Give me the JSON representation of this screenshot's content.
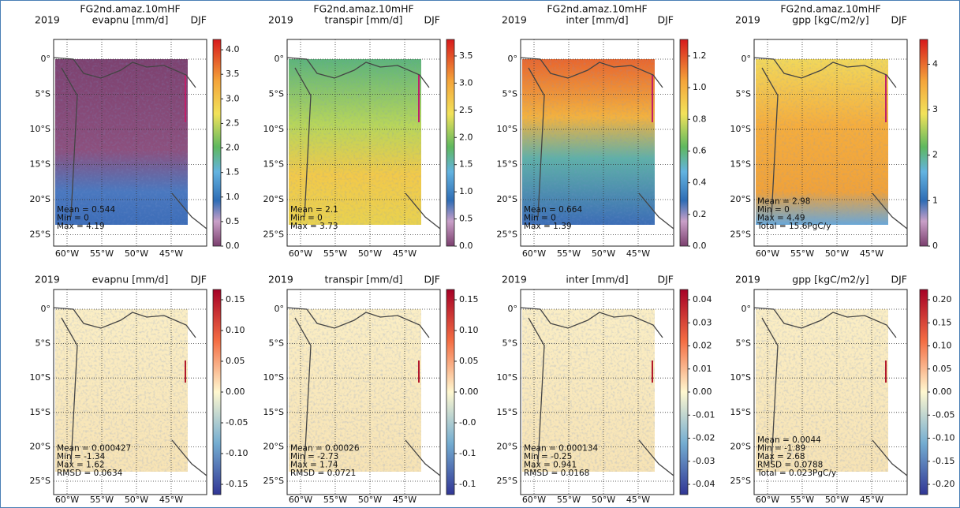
{
  "panels": [
    {
      "title": "FG2nd.amaz.10mHF",
      "year": "2019",
      "variable": "evapnu [mm/d]",
      "season": "DJF",
      "stats": [
        "Mean = 0.544",
        "Min = 0",
        "Max = 4.19"
      ],
      "colorbar_ticks": [
        "0.0",
        "0.5",
        "1.0",
        "1.5",
        "2.0",
        "2.5",
        "3.0",
        "3.5",
        "4.0"
      ]
    },
    {
      "title": "FG2nd.amaz.10mHF",
      "year": "2019",
      "variable": "transpir [mm/d]",
      "season": "DJF",
      "stats": [
        "Mean = 2.1",
        "Min = 0",
        "Max = 3.73"
      ],
      "colorbar_ticks": [
        "0.0",
        "0.5",
        "1.0",
        "1.5",
        "2.0",
        "2.5",
        "3.0",
        "3.5"
      ]
    },
    {
      "title": "FG2nd.amaz.10mHF",
      "year": "2019",
      "variable": "inter [mm/d]",
      "season": "DJF",
      "stats": [
        "Mean = 0.664",
        "Min = 0",
        "Max = 1.39"
      ],
      "colorbar_ticks": [
        "0.0",
        "0.2",
        "0.4",
        "0.6",
        "0.8",
        "1.0",
        "1.2"
      ]
    },
    {
      "title": "FG2nd.amaz.10mHF",
      "year": "2019",
      "variable": "gpp [kgC/m2/y]",
      "season": "DJF",
      "stats": [
        "Mean = 2.98",
        "Min = 0",
        "Max = 4.49",
        "Total = 15.6PgC/y"
      ],
      "colorbar_ticks": [
        "0",
        "1",
        "2",
        "3",
        "4"
      ]
    },
    {
      "year": "2019",
      "variable": "evapnu [mm/d]",
      "season": "DJF",
      "stats": [
        "Mean = 0.000427",
        "Min = -1.34",
        "Max = 1.62",
        "RMSD = 0.0634"
      ],
      "colorbar_ticks": [
        "-0.15",
        "-0.10",
        "-0.05",
        "0.00",
        "0.05",
        "0.10",
        "0.15"
      ]
    },
    {
      "year": "2019",
      "variable": "transpir [mm/d]",
      "season": "DJF",
      "stats": [
        "Mean = 0.00026",
        "Min = -2.73",
        "Max = 1.74",
        "RMSD = 0.0721"
      ],
      "colorbar_ticks": [
        "-0.1",
        "-0.1",
        "-0.0",
        "0.00",
        "0.05",
        "0.10",
        "0.15"
      ]
    },
    {
      "year": "2019",
      "variable": "inter [mm/d]",
      "season": "DJF",
      "stats": [
        "Mean = 0.000134",
        "Min = -0.25",
        "Max = 0.941",
        "RMSD = 0.0168"
      ],
      "colorbar_ticks": [
        "-0.04",
        "-0.03",
        "-0.02",
        "-0.01",
        "0.00",
        "0.01",
        "0.02",
        "0.03",
        "0.04"
      ]
    },
    {
      "year": "2019",
      "variable": "gpp [kgC/m2/y]",
      "season": "DJF",
      "stats": [
        "Mean = 0.0044",
        "Min = -1.89",
        "Max = 2.68",
        "RMSD = 0.0788",
        "Total = 0.023PgC/y"
      ],
      "colorbar_ticks": [
        "-0.20",
        "-0.15",
        "-0.10",
        "-0.05",
        "0.00",
        "0.05",
        "0.10",
        "0.15",
        "0.20"
      ]
    }
  ],
  "lat_labels": [
    "0°",
    "5°S",
    "10°S",
    "15°S",
    "20°S",
    "25°S"
  ],
  "lon_labels": [
    "60°W",
    "55°W",
    "50°W",
    "45°W"
  ]
}
